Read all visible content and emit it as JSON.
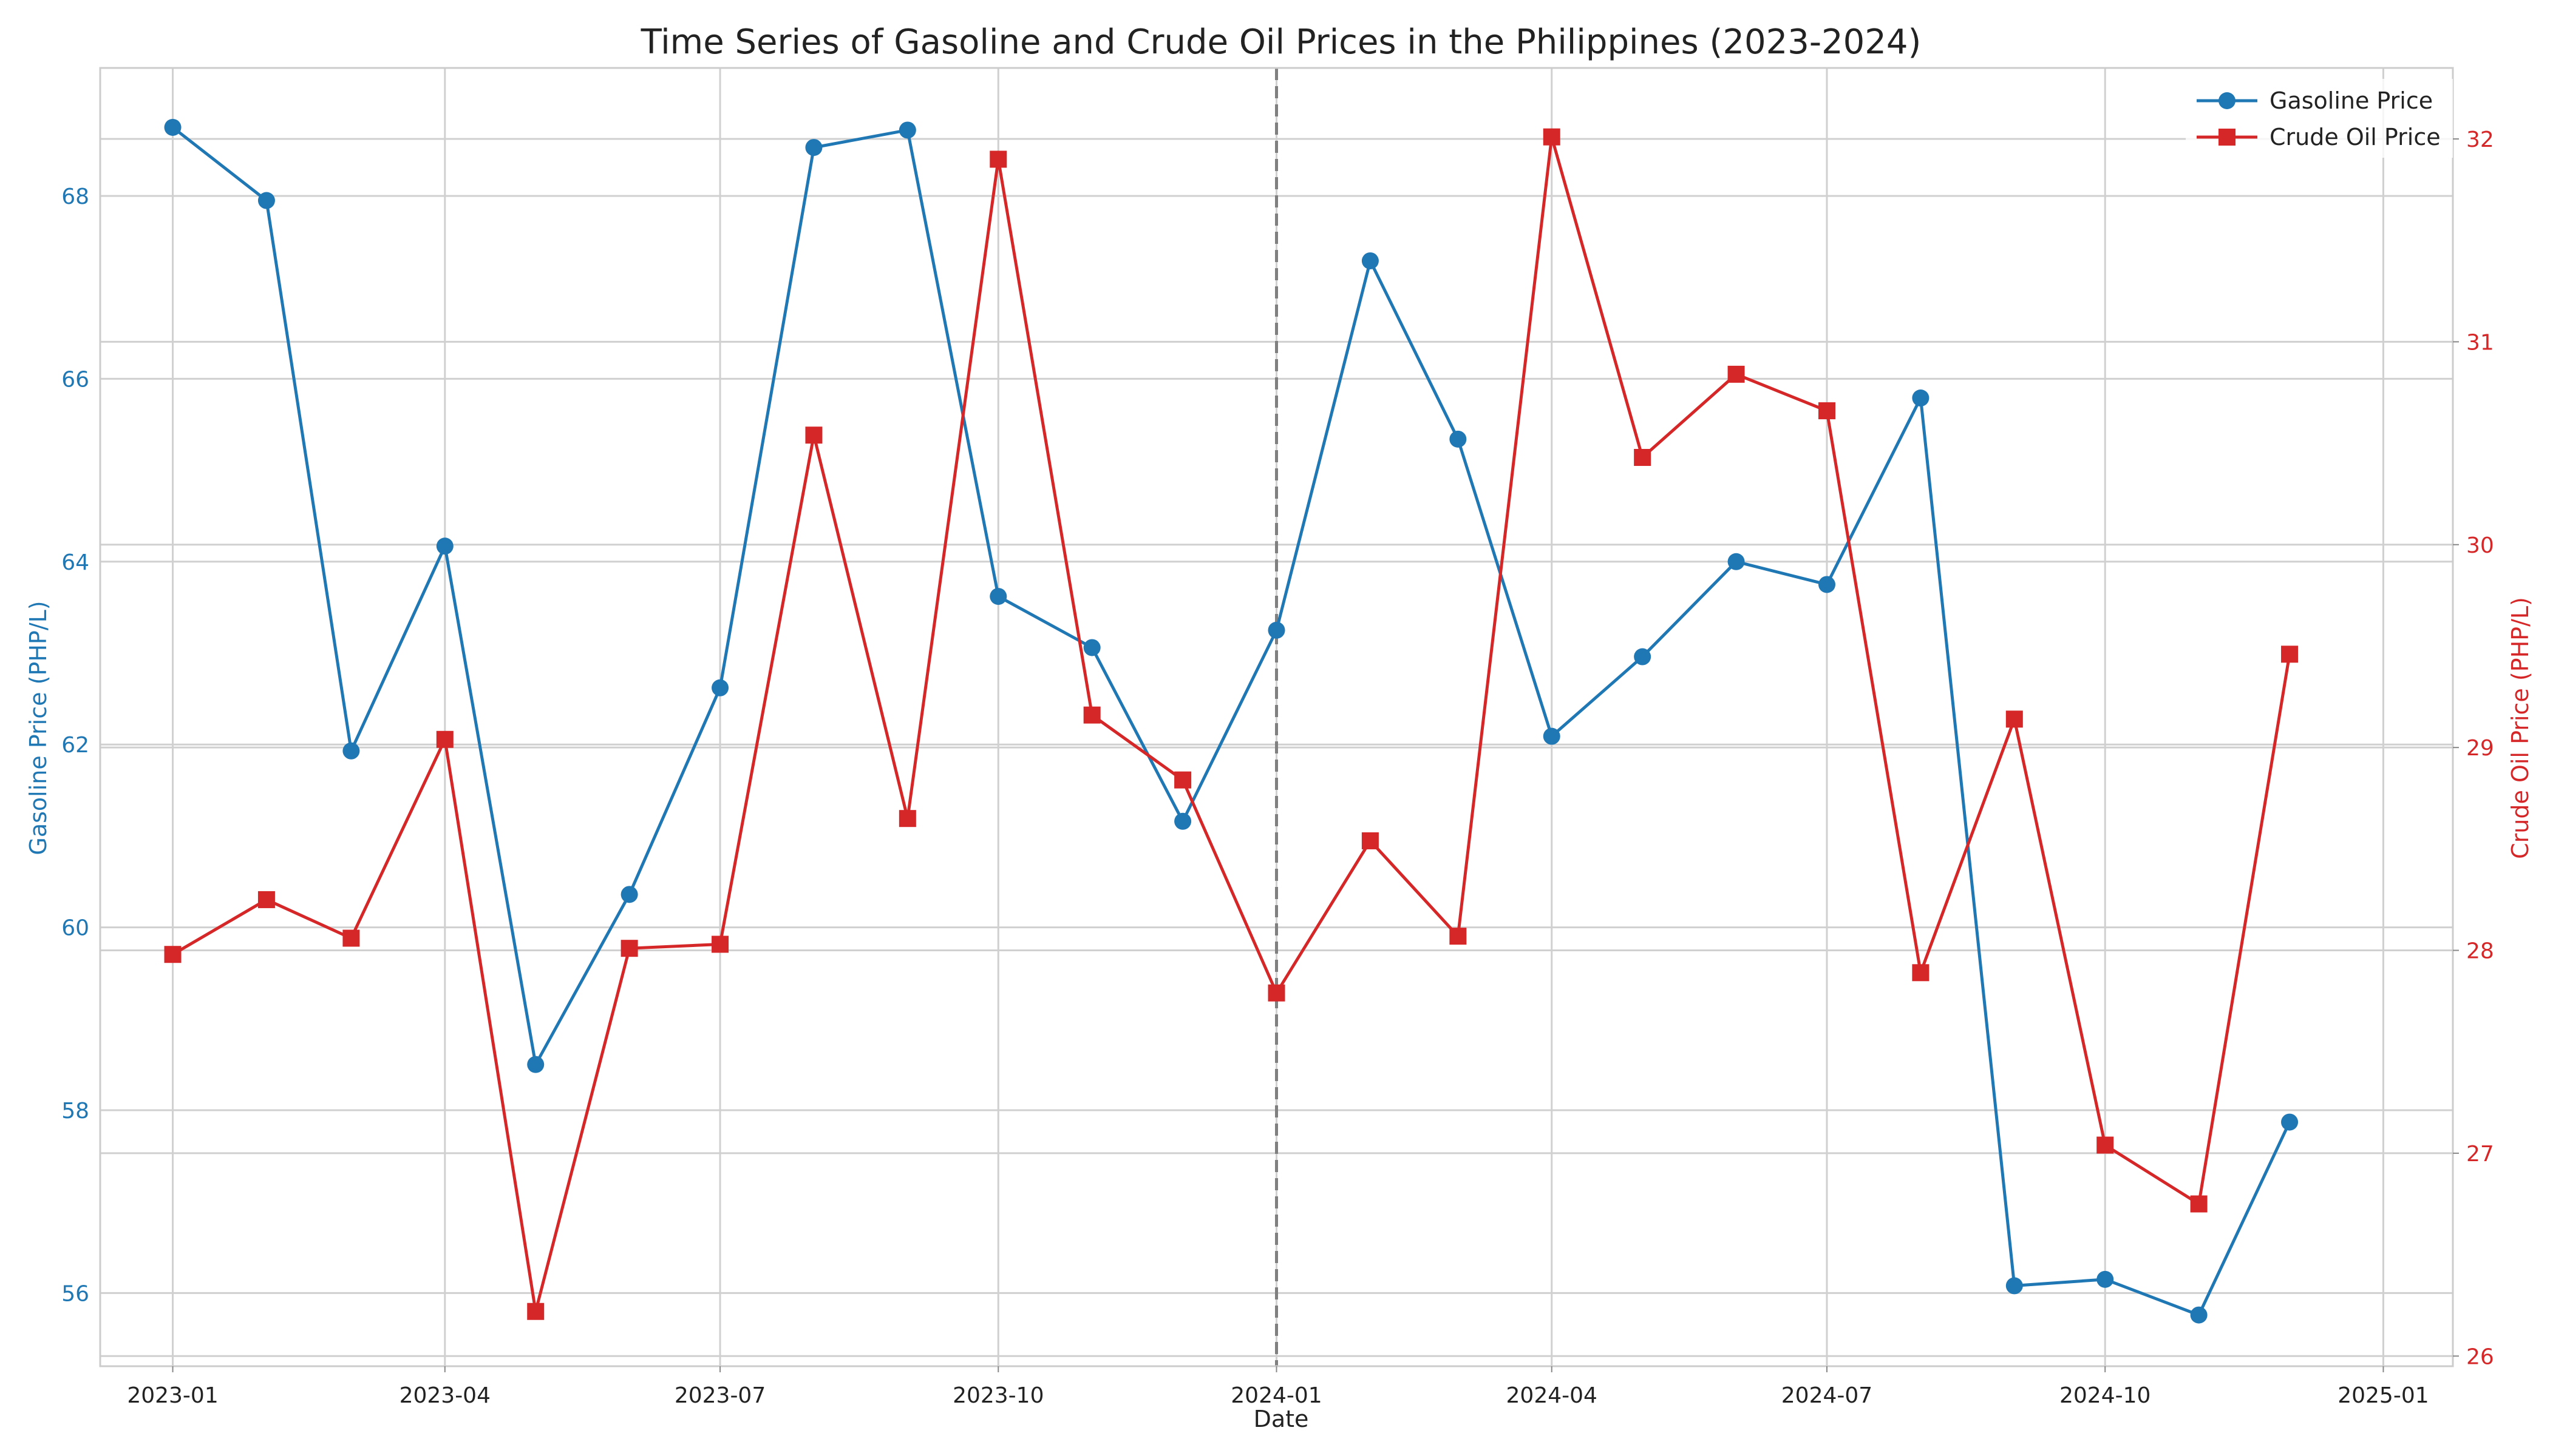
{
  "chart_data": {
    "type": "line",
    "title": "Time Series of Gasoline and Crude Oil Prices in the Philippines (2023-2024)",
    "xlabel": "Date",
    "ylabel_left": "Gasoline Price (PHP/L)",
    "ylabel_right": "Crude Oil Price (PHP/L)",
    "x": [
      "2023-01-01",
      "2023-02-01",
      "2023-03-01",
      "2023-04-01",
      "2023-05-01",
      "2023-06-01",
      "2023-07-01",
      "2023-08-01",
      "2023-09-01",
      "2023-10-01",
      "2023-11-01",
      "2023-12-01",
      "2024-01-01",
      "2024-02-01",
      "2024-03-01",
      "2024-04-01",
      "2024-05-01",
      "2024-06-01",
      "2024-07-01",
      "2024-08-01",
      "2024-09-01",
      "2024-10-01",
      "2024-11-01",
      "2024-12-01"
    ],
    "x_range": [
      "2022-12-08",
      "2025-01-24"
    ],
    "x_ticks": [
      "2023-01",
      "2023-04",
      "2023-07",
      "2023-10",
      "2024-01",
      "2024-04",
      "2024-07",
      "2024-10",
      "2025-01"
    ],
    "ylim_left": [
      55.2,
      69.4
    ],
    "ylim_right": [
      25.95,
      32.35
    ],
    "yticks_left": [
      56,
      58,
      60,
      62,
      64,
      66,
      68
    ],
    "yticks_right": [
      26,
      27,
      28,
      29,
      30,
      31,
      32
    ],
    "vline_x": "2024-01-01",
    "grid": true,
    "legend_position": "top-right",
    "series": [
      {
        "name": "Gasoline Price",
        "axis": "left",
        "color": "#1f77b4",
        "marker": "circle",
        "values": [
          68.75,
          67.95,
          61.93,
          64.17,
          58.5,
          60.36,
          62.62,
          68.53,
          68.72,
          63.62,
          63.06,
          61.16,
          63.25,
          67.29,
          65.34,
          62.09,
          62.96,
          64.0,
          63.75,
          65.79,
          56.08,
          56.15,
          55.76,
          57.87
        ]
      },
      {
        "name": "Crude Oil Price",
        "axis": "right",
        "color": "#d62728",
        "marker": "square",
        "values": [
          27.98,
          28.25,
          28.06,
          29.04,
          26.22,
          28.01,
          28.03,
          30.54,
          28.65,
          31.9,
          29.16,
          28.84,
          27.79,
          28.54,
          28.07,
          32.01,
          30.43,
          30.84,
          30.66,
          27.89,
          29.14,
          27.04,
          26.75,
          29.46
        ]
      }
    ]
  }
}
